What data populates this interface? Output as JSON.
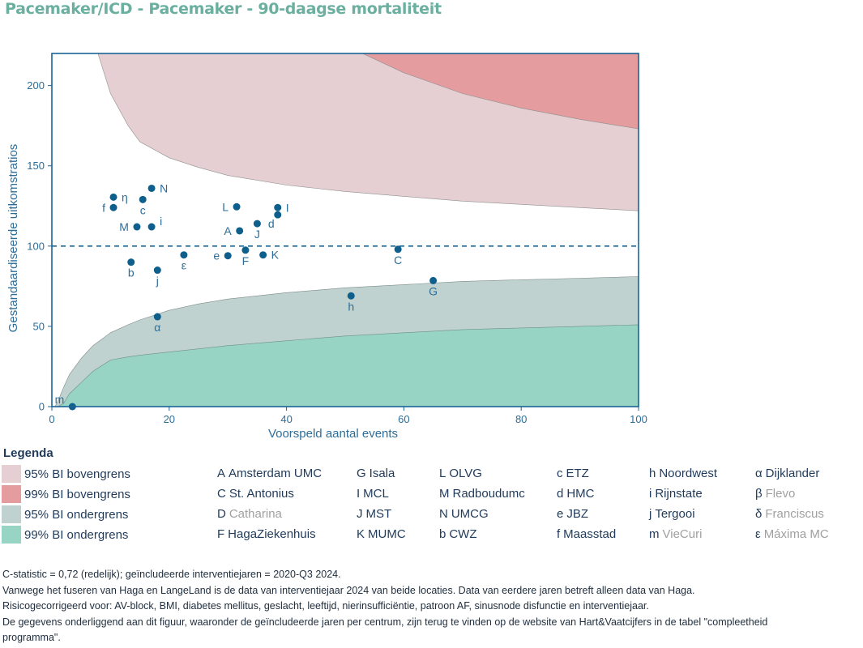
{
  "title": "Pacemaker/ICD - Pacemaker - 90-daagse mortaliteit",
  "chart_data": {
    "type": "scatter",
    "subtype": "funnel-plot",
    "xlabel": "Voorspeld aantal events",
    "ylabel": "Gestandaardiseerde uitkomstratios",
    "xlim": [
      0,
      100
    ],
    "ylim": [
      0,
      220
    ],
    "xticks": [
      0,
      20,
      40,
      60,
      80,
      100
    ],
    "yticks": [
      0,
      50,
      100,
      150,
      200
    ],
    "reference_line": 100,
    "grid": false,
    "bands": {
      "x": [
        0.5,
        1,
        2,
        3,
        5,
        7,
        10,
        13,
        15,
        20,
        25,
        30,
        40,
        50,
        60,
        70,
        80,
        90,
        100
      ],
      "upper95": [
        null,
        null,
        null,
        null,
        null,
        230,
        195,
        175,
        165,
        155,
        149,
        144,
        138,
        134,
        131,
        128,
        126,
        124,
        122
      ],
      "upper99": [
        null,
        null,
        null,
        null,
        null,
        null,
        null,
        null,
        null,
        null,
        null,
        null,
        248,
        225,
        208,
        195,
        186,
        179,
        173
      ],
      "lower95": [
        0,
        3,
        12,
        20,
        30,
        38,
        46,
        51,
        54,
        60,
        64,
        67,
        71,
        74,
        76,
        78,
        79,
        80,
        81
      ],
      "lower99": [
        0,
        0,
        2,
        8,
        15,
        22,
        29,
        31,
        32,
        34,
        36,
        38,
        41,
        44,
        46,
        48,
        49,
        50,
        51
      ]
    },
    "points": [
      {
        "label": "A",
        "x": 32.0,
        "y": 109.5,
        "pos": "left"
      },
      {
        "label": "C",
        "x": 59.0,
        "y": 98.0,
        "pos": "below"
      },
      {
        "label": "F",
        "x": 33.0,
        "y": 97.5,
        "pos": "below"
      },
      {
        "label": "J",
        "x": 35.0,
        "y": 114.0,
        "pos": "below"
      },
      {
        "label": "K",
        "x": 36.0,
        "y": 94.5,
        "pos": "right"
      },
      {
        "label": "G",
        "x": 65.0,
        "y": 78.5,
        "pos": "below"
      },
      {
        "label": "I",
        "x": 38.5,
        "y": 124.0,
        "pos": "right"
      },
      {
        "label": "L",
        "x": 31.5,
        "y": 124.5,
        "pos": "left"
      },
      {
        "label": "M",
        "x": 14.5,
        "y": 112.0,
        "pos": "left"
      },
      {
        "label": "N",
        "x": 17.0,
        "y": 136.0,
        "pos": "right"
      },
      {
        "label": "b",
        "x": 13.5,
        "y": 90.0,
        "pos": "below"
      },
      {
        "label": "c",
        "x": 15.5,
        "y": 129.0,
        "pos": "below"
      },
      {
        "label": "d",
        "x": 38.5,
        "y": 119.5,
        "pos": "belowleft"
      },
      {
        "label": "e",
        "x": 30.0,
        "y": 94.0,
        "pos": "left"
      },
      {
        "label": "f",
        "x": 10.5,
        "y": 124.0,
        "pos": "left"
      },
      {
        "label": "h",
        "x": 51.0,
        "y": 69.0,
        "pos": "below"
      },
      {
        "label": "i",
        "x": 17.0,
        "y": 112.0,
        "pos": "aboveright"
      },
      {
        "label": "j",
        "x": 18.0,
        "y": 85.0,
        "pos": "below"
      },
      {
        "label": "m",
        "x": 3.5,
        "y": 0.0,
        "pos": "aboveleft"
      },
      {
        "label": "α",
        "x": 18.0,
        "y": 56.0,
        "pos": "below"
      },
      {
        "label": "ε",
        "x": 22.5,
        "y": 94.5,
        "pos": "below"
      },
      {
        "label": "η",
        "x": 10.5,
        "y": 130.5,
        "pos": "right"
      }
    ],
    "colors": {
      "upper95": "#e5cfd2",
      "upper99": "#e49c9e",
      "lower95": "#bfd2cf",
      "lower99": "#98d4c3",
      "axis": "#1a6496",
      "point": "#0f5f8c",
      "refline": "#1a6496"
    }
  },
  "legend": {
    "title": "Legenda",
    "items": [
      {
        "label": "95% BI bovengrens",
        "color": "#e5cfd2"
      },
      {
        "label": "99% BI bovengrens",
        "color": "#e49c9e"
      },
      {
        "label": "95% BI ondergrens",
        "color": "#bfd2cf"
      },
      {
        "label": "99% BI ondergrens",
        "color": "#98d4c3"
      }
    ]
  },
  "hospitals": [
    [
      {
        "code": "A",
        "name": "Amsterdam UMC",
        "active": true
      },
      {
        "code": "C",
        "name": "St. Antonius",
        "active": true
      },
      {
        "code": "D",
        "name": "Catharina",
        "active": false
      },
      {
        "code": "F",
        "name": "HagaZiekenhuis",
        "active": true
      }
    ],
    [
      {
        "code": "G",
        "name": "Isala",
        "active": true
      },
      {
        "code": "I",
        "name": "MCL",
        "active": true
      },
      {
        "code": "J",
        "name": "MST",
        "active": true
      },
      {
        "code": "K",
        "name": "MUMC",
        "active": true
      }
    ],
    [
      {
        "code": "L",
        "name": "OLVG",
        "active": true
      },
      {
        "code": "M",
        "name": "Radboudumc",
        "active": true
      },
      {
        "code": "N",
        "name": "UMCG",
        "active": true
      },
      {
        "code": "b",
        "name": "CWZ",
        "active": true
      }
    ],
    [
      {
        "code": "c",
        "name": "ETZ",
        "active": true
      },
      {
        "code": "d",
        "name": "HMC",
        "active": true
      },
      {
        "code": "e",
        "name": "JBZ",
        "active": true
      },
      {
        "code": "f",
        "name": "Maasstad",
        "active": true
      }
    ],
    [
      {
        "code": "h",
        "name": "Noordwest",
        "active": true
      },
      {
        "code": "i",
        "name": "Rijnstate",
        "active": true
      },
      {
        "code": "j",
        "name": "Tergooi",
        "active": true
      },
      {
        "code": "m",
        "name": "VieCuri",
        "active": false
      }
    ],
    [
      {
        "code": "α",
        "name": "Dijklander",
        "active": true
      },
      {
        "code": "β",
        "name": "Flevo",
        "active": false
      },
      {
        "code": "δ",
        "name": "Franciscus",
        "active": false
      },
      {
        "code": "ε",
        "name": "Máxima MC",
        "active": false
      }
    ]
  ],
  "footnotes": [
    "C-statistic =  0,72 (redelijk); geïncludeerde interventiejaren = 2020-Q3 2024.",
    "Vanwege het fuseren van Haga en LangeLand is de data van interventiejaar 2024 van beide locaties. Data van eerdere jaren betreft alleen data van Haga.",
    "Risicogecorrigeerd voor: AV-block, BMI, diabetes mellitus, geslacht, leeftijd, nierinsufficiëntie, patroon AF, sinusnode disfunctie en interventiejaar.",
    "De gegevens onderliggend aan dit figuur, waaronder de geïncludeerde jaren per centrum, zijn terug te vinden op de website van Hart&Vaatcijfers in de tabel \"compleetheid",
    "programma\"."
  ]
}
